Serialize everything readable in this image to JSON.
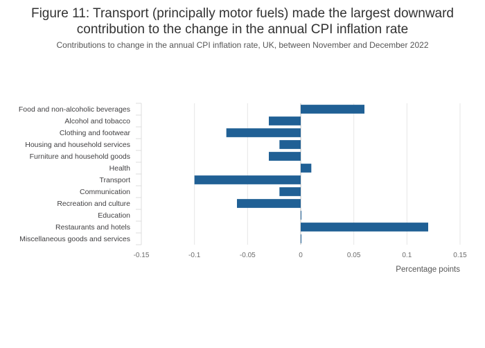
{
  "header": {
    "title": "Figure 11: Transport (principally motor fuels) made the largest downward contribution to the change in the annual CPI inflation rate",
    "subtitle": "Contributions to change in the annual CPI inflation rate, UK, between November and December 2022"
  },
  "chart_data": {
    "type": "bar",
    "orientation": "horizontal",
    "categories": [
      "Food and non-alcoholic beverages",
      "Alcohol and tobacco",
      "Clothing and footwear",
      "Housing and household services",
      "Furniture and household goods",
      "Health",
      "Transport",
      "Communication",
      "Recreation and culture",
      "Education",
      "Restaurants and hotels",
      "Miscellaneous goods and services"
    ],
    "values": [
      0.06,
      -0.03,
      -0.07,
      -0.02,
      -0.03,
      0.01,
      -0.1,
      -0.02,
      -0.06,
      0.0,
      0.12,
      0.0
    ],
    "xlabel": "Percentage points",
    "xlim": [
      -0.15,
      0.15
    ],
    "xticks": [
      -0.15,
      -0.1,
      -0.05,
      0,
      0.05,
      0.1,
      0.15
    ],
    "xtick_labels": [
      "-0.15",
      "-0.1",
      "-0.05",
      "0",
      "0.05",
      "0.1",
      "0.15"
    ],
    "grid": true,
    "bar_color": "#206095"
  }
}
